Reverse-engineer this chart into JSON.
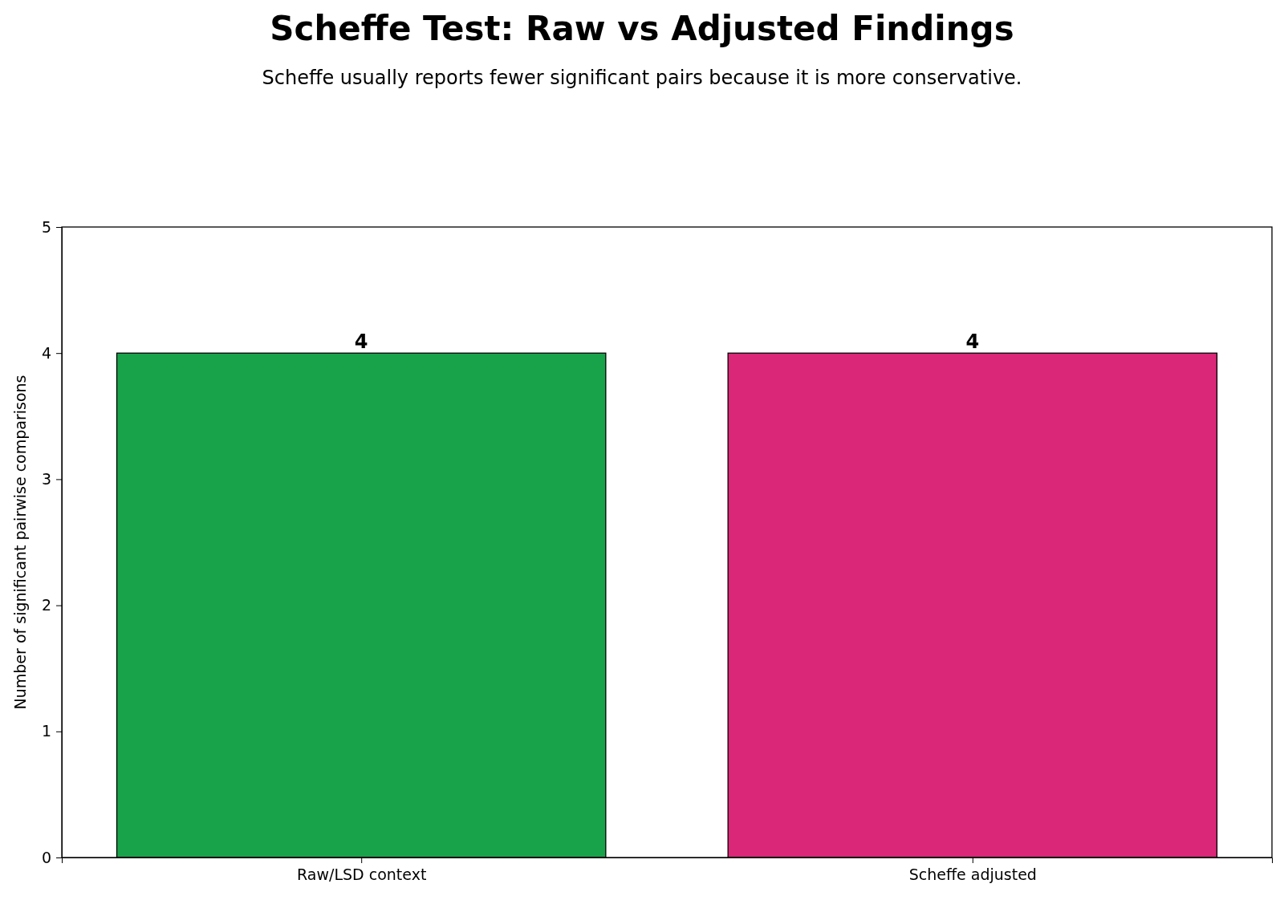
{
  "chart_data": {
    "type": "bar",
    "title": "Scheffe Test: Raw vs Adjusted Findings",
    "subtitle": "Scheffe usually reports fewer significant pairs because it is more conservative.",
    "ylabel": "Number of significant pairwise comparisons",
    "categories": [
      "Raw/LSD context",
      "Scheffe adjusted"
    ],
    "values": [
      4,
      4
    ],
    "colors": [
      "#18a34a",
      "#db2777"
    ],
    "ylim": [
      0,
      5
    ],
    "yticks": [
      0,
      1,
      2,
      3,
      4,
      5
    ],
    "grid": false,
    "data_labels": true
  }
}
